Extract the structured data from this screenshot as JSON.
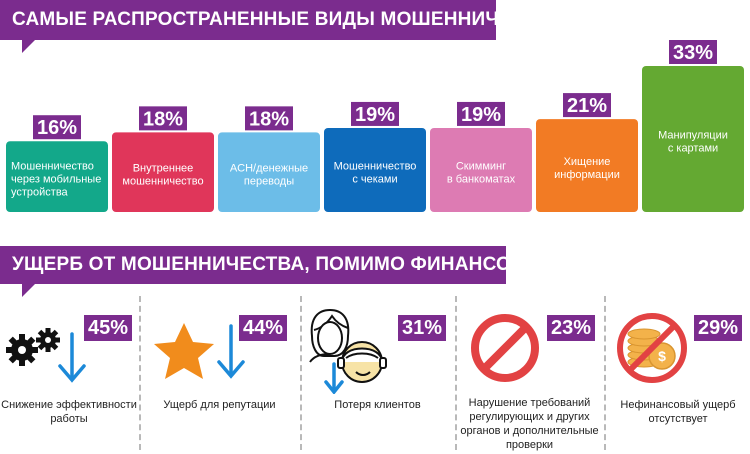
{
  "header1": "САМЫЕ РАСПРОСТРАНЕННЫЕ ВИДЫ МОШЕННИЧЕСТВА",
  "header2": "УЩЕРБ ОТ МОШЕННИЧЕСТВА, ПОМИМО ФИНАНСОВОГО",
  "colors": {
    "accent": "#7b2c8e",
    "bars": [
      "#13a88a",
      "#e0365a",
      "#6cbde8",
      "#0e6bbb",
      "#dd7bb3",
      "#f27b24",
      "#64a932"
    ],
    "icon_arrow": "#1c89d8",
    "star": "#f18c1c",
    "prohibit": "#e24243",
    "coins": "#f3b24a"
  },
  "chart_data": {
    "type": "bar",
    "categories": [
      [
        "Мошенничество",
        "через мобильные",
        "устройства"
      ],
      [
        "Внутреннее",
        "мошенничество"
      ],
      [
        "ACH/денежные",
        "переводы"
      ],
      [
        "Мошенничество",
        "с чеками"
      ],
      [
        "Скимминг",
        "в банкоматах"
      ],
      [
        "Хищение",
        "информации"
      ],
      [
        "Манипуляции",
        "с картами"
      ]
    ],
    "values": [
      16,
      18,
      18,
      19,
      19,
      21,
      33
    ],
    "value_labels": [
      "16%",
      "18%",
      "18%",
      "19%",
      "19%",
      "21%",
      "33%"
    ]
  },
  "damage": [
    {
      "value": "45%",
      "label": "Снижение эффективности работы",
      "icon": "gears-down-icon"
    },
    {
      "value": "44%",
      "label": "Ущерб для репутации",
      "icon": "star-down-icon"
    },
    {
      "value": "31%",
      "label": "Потеря клиентов",
      "icon": "customers-icon"
    },
    {
      "value": "23%",
      "label": "Нарушение требований регулирующих и других органов и дополнительные проверки",
      "icon": "prohibition-icon"
    },
    {
      "value": "29%",
      "label": "Нефинансовый ущерб отсутствует",
      "icon": "no-coins-icon"
    }
  ]
}
